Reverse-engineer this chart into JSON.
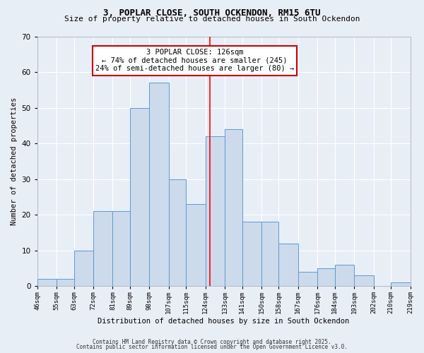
{
  "title1": "3, POPLAR CLOSE, SOUTH OCKENDON, RM15 6TU",
  "title2": "Size of property relative to detached houses in South Ockendon",
  "xlabel": "Distribution of detached houses by size in South Ockendon",
  "ylabel": "Number of detached properties",
  "bin_labels": [
    "46sqm",
    "55sqm",
    "63sqm",
    "72sqm",
    "81sqm",
    "89sqm",
    "98sqm",
    "107sqm",
    "115sqm",
    "124sqm",
    "133sqm",
    "141sqm",
    "150sqm",
    "158sqm",
    "167sqm",
    "176sqm",
    "184sqm",
    "193sqm",
    "202sqm",
    "210sqm",
    "219sqm"
  ],
  "bin_edges": [
    46,
    55,
    63,
    72,
    81,
    89,
    98,
    107,
    115,
    124,
    133,
    141,
    150,
    158,
    167,
    176,
    184,
    193,
    202,
    210,
    219
  ],
  "bar_heights": [
    2,
    2,
    10,
    21,
    21,
    50,
    57,
    30,
    23,
    42,
    44,
    18,
    18,
    12,
    4,
    5,
    6,
    3,
    0,
    1
  ],
  "bar_color": "#ccdaeb",
  "bar_edge_color": "#5b9bd5",
  "red_line_x": 126,
  "ylim": [
    0,
    70
  ],
  "yticks": [
    0,
    10,
    20,
    30,
    40,
    50,
    60,
    70
  ],
  "annotation_text": "3 POPLAR CLOSE: 126sqm\n← 74% of detached houses are smaller (245)\n24% of semi-detached houses are larger (80) →",
  "annotation_box_color": "#ffffff",
  "annotation_box_edge": "#cc0000",
  "footer1": "Contains HM Land Registry data © Crown copyright and database right 2025.",
  "footer2": "Contains public sector information licensed under the Open Government Licence v3.0.",
  "bg_color": "#e8eef6",
  "grid_color": "#ffffff",
  "title1_fontsize": 9,
  "title2_fontsize": 8
}
